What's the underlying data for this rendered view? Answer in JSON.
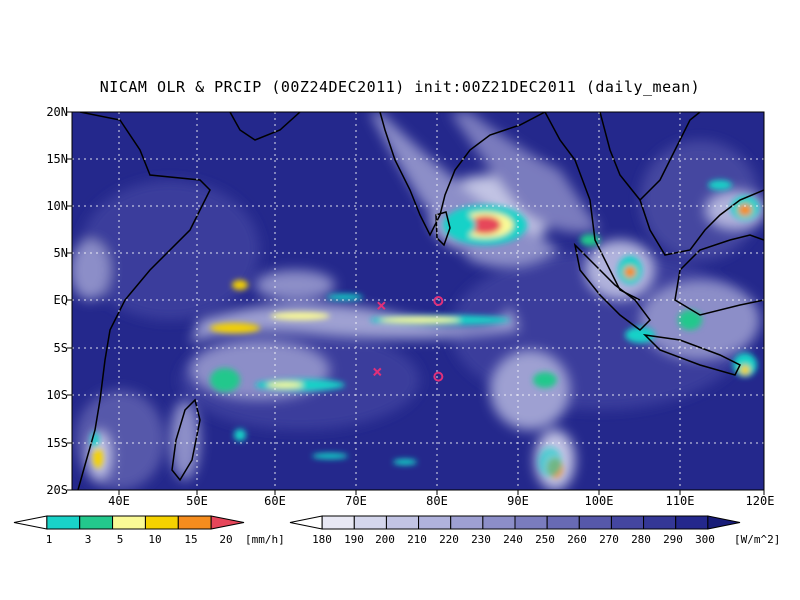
{
  "title": "NICAM OLR & PRCIP (00Z24DEC2011) init:00Z21DEC2011 (daily_mean)",
  "lat_labels": [
    "20N",
    "15N",
    "10N",
    "5N",
    "EQ",
    "5S",
    "10S",
    "15S",
    "20S"
  ],
  "lon_labels": [
    "40E",
    "50E",
    "60E",
    "70E",
    "80E",
    "90E",
    "100E",
    "110E",
    "120E"
  ],
  "precip_colorbar": {
    "labels": [
      "1",
      "3",
      "5",
      "10",
      "15",
      "20"
    ],
    "unit": "[mm/h]",
    "colors": [
      "#ffffff",
      "#19d2c8",
      "#23c88c",
      "#fafa96",
      "#f5d200",
      "#f58c1e",
      "#e6465a"
    ]
  },
  "olr_colorbar": {
    "labels": [
      "180",
      "190",
      "200",
      "210",
      "220",
      "230",
      "240",
      "250",
      "260",
      "270",
      "280",
      "290",
      "300"
    ],
    "unit": "[W/m^2]",
    "colors": [
      "#ffffff",
      "#e8e8f4",
      "#d4d6ec",
      "#c2c4e4",
      "#b0b2dc",
      "#9ea0d2",
      "#8c8ec8",
      "#7a7cbe",
      "#686ab4",
      "#5658aa",
      "#4446a0",
      "#343796",
      "#24288c",
      "#181c78"
    ]
  },
  "markers": [
    {
      "type": "x",
      "lon": 73,
      "lat": -0.5,
      "color": "#e0307a"
    },
    {
      "type": "o",
      "lon": 80,
      "lat": 0,
      "color": "#e0307a"
    },
    {
      "type": "x",
      "lon": 72.5,
      "lat": -7.5,
      "color": "#e0307a"
    },
    {
      "type": "o",
      "lon": 80,
      "lat": -8,
      "color": "#e0307a"
    }
  ],
  "map_extent": {
    "lon": [
      35,
      120
    ],
    "lat": [
      -20,
      20
    ]
  }
}
